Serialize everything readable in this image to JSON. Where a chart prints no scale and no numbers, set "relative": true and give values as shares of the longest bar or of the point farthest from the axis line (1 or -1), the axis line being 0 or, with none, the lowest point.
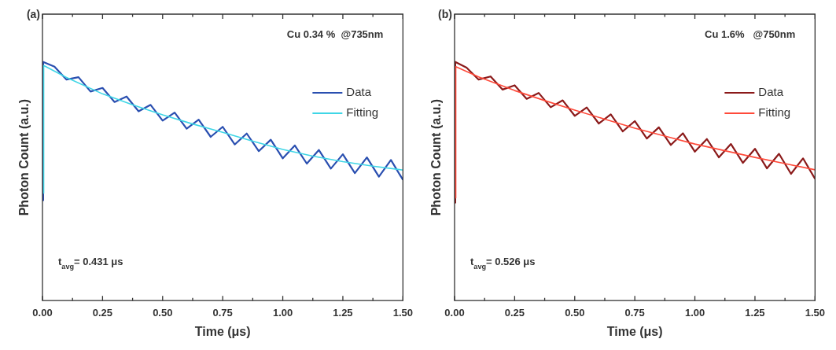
{
  "chart_data": [
    {
      "type": "line",
      "title": "(a)",
      "xlabel": "Time (μs)",
      "ylabel": "Photon Count (a.u.)",
      "relative": true,
      "legend": "top right",
      "annotations": [
        "Cu 0.34 %  @735nm",
        "t$_{avg}$= 0.431 μs"
      ],
      "xlim": [
        0,
        1.5
      ],
      "xticks": [
        {
          "value": 0,
          "label": "0.00"
        },
        {
          "value": 0.125,
          "label": null
        },
        0.25,
        {
          "value": 0.375,
          "label": null
        },
        {
          "value": 0.5,
          "label": "0.50"
        },
        {
          "value": 0.625,
          "label": null
        },
        0.75,
        {
          "value": 0.875,
          "label": null
        },
        {
          "value": 1,
          "label": "1.00"
        },
        {
          "value": 1.125,
          "label": null
        },
        1.25,
        {
          "value": 1.375,
          "label": null
        },
        {
          "value": 1.5,
          "label": "1.50"
        }
      ],
      "series": [
        {
          "name": "Data",
          "color": "#2a4fb0",
          "x": [
            0,
            0.003,
            0.05,
            0.1,
            0.15,
            0.2,
            0.25,
            0.3,
            0.35,
            0.4,
            0.45,
            0.5,
            0.55,
            0.6,
            0.65,
            0.7,
            0.75,
            0.8,
            0.85,
            0.9,
            0.95,
            1.0,
            1.05,
            1.1,
            1.15,
            1.2,
            1.25,
            1.3,
            1.35,
            1.4,
            1.45,
            1.5
          ],
          "values": [
            0.42,
            1.0,
            0.98,
            0.926,
            0.936,
            0.876,
            0.891,
            0.832,
            0.855,
            0.793,
            0.82,
            0.754,
            0.788,
            0.72,
            0.758,
            0.686,
            0.728,
            0.654,
            0.7,
            0.626,
            0.674,
            0.596,
            0.65,
            0.574,
            0.631,
            0.553,
            0.613,
            0.534,
            0.6,
            0.519,
            0.589,
            0.506
          ]
        },
        {
          "name": "Fitting",
          "color": "#3fd6e6",
          "x": [
            0.004,
            0.005,
            0.1,
            0.25,
            0.375,
            0.5,
            0.625,
            0.75,
            0.875,
            1.0,
            1.125,
            1.25,
            1.375,
            1.5
          ],
          "values": [
            0.45,
            0.985,
            0.935,
            0.866,
            0.82,
            0.778,
            0.74,
            0.705,
            0.668,
            0.633,
            0.605,
            0.582,
            0.563,
            0.547
          ]
        }
      ]
    },
    {
      "type": "line",
      "title": "(b)",
      "xlabel": "Time (μs)",
      "ylabel": "Photon Count (a.u.)",
      "relative": true,
      "legend": "top right",
      "annotations": [
        "Cu 1.6%   @750nm",
        "t$_{avg}$= 0.526 μs"
      ],
      "xlim": [
        0,
        1.5
      ],
      "xticks": [
        {
          "value": 0,
          "label": "0.00"
        },
        {
          "value": 0.125,
          "label": null
        },
        0.25,
        {
          "value": 0.375,
          "label": null
        },
        {
          "value": 0.5,
          "label": "0.50"
        },
        {
          "value": 0.625,
          "label": null
        },
        0.75,
        {
          "value": 0.875,
          "label": null
        },
        {
          "value": 1,
          "label": "1.00"
        },
        {
          "value": 1.125,
          "label": null
        },
        1.25,
        {
          "value": 1.375,
          "label": null
        },
        {
          "value": 1.5,
          "label": "1.50"
        }
      ],
      "series": [
        {
          "name": "Data",
          "color": "#8b1a1a",
          "x": [
            0,
            0.003,
            0.05,
            0.1,
            0.15,
            0.2,
            0.25,
            0.3,
            0.35,
            0.4,
            0.45,
            0.5,
            0.55,
            0.6,
            0.65,
            0.7,
            0.75,
            0.8,
            0.85,
            0.9,
            0.95,
            1.0,
            1.05,
            1.1,
            1.15,
            1.2,
            1.25,
            1.3,
            1.35,
            1.4,
            1.45,
            1.5
          ],
          "values": [
            0.41,
            1.0,
            0.976,
            0.926,
            0.939,
            0.884,
            0.902,
            0.845,
            0.87,
            0.81,
            0.839,
            0.774,
            0.809,
            0.742,
            0.78,
            0.709,
            0.752,
            0.679,
            0.726,
            0.652,
            0.701,
            0.624,
            0.677,
            0.6,
            0.656,
            0.577,
            0.636,
            0.554,
            0.615,
            0.531,
            0.596,
            0.51
          ]
        },
        {
          "name": "Fitting",
          "color": "#ff4a3a",
          "x": [
            0.004,
            0.005,
            0.1,
            0.25,
            0.375,
            0.5,
            0.625,
            0.75,
            0.875,
            1.0,
            1.125,
            1.25,
            1.375,
            1.5
          ],
          "values": [
            0.43,
            0.98,
            0.937,
            0.88,
            0.838,
            0.798,
            0.76,
            0.722,
            0.689,
            0.656,
            0.628,
            0.6,
            0.574,
            0.548
          ]
        }
      ]
    }
  ]
}
